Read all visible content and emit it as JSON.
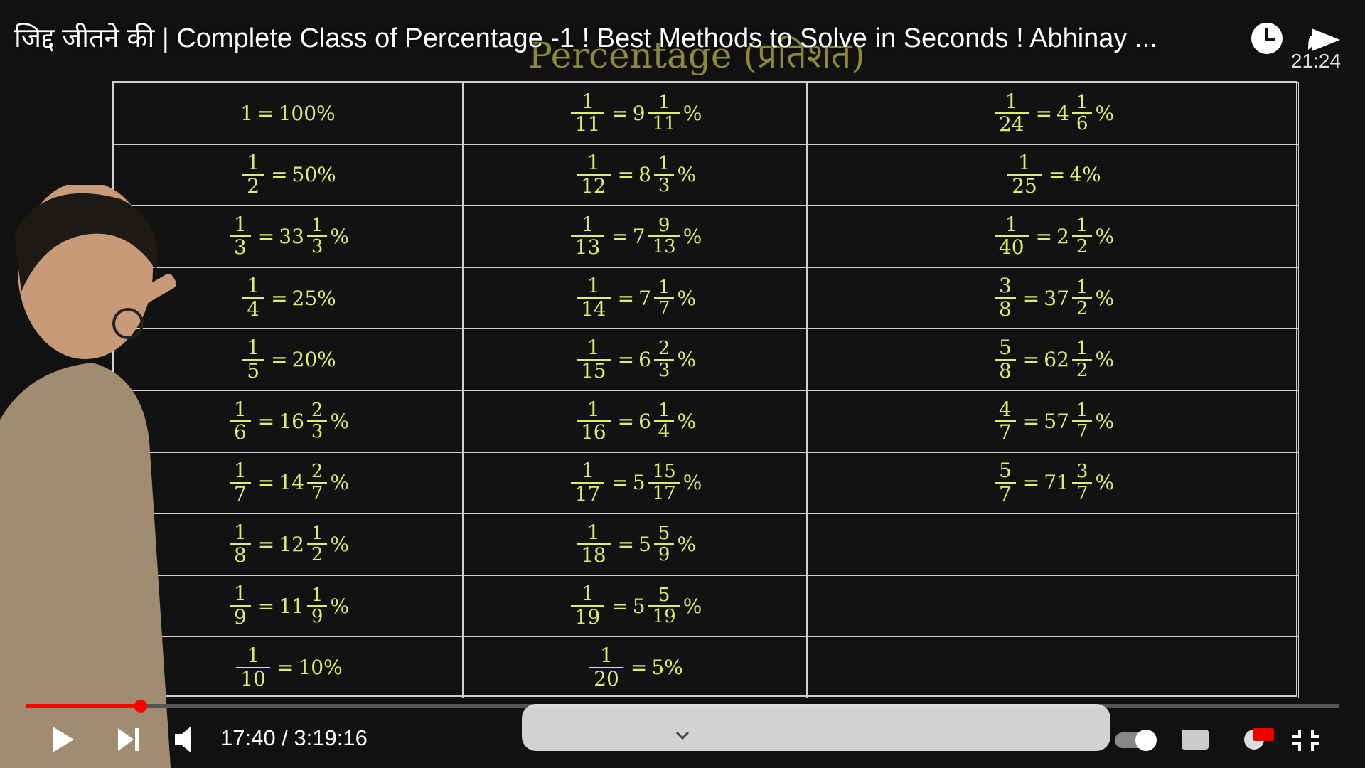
{
  "video": {
    "title": "जिद्द जीतने की | Complete Class of Percentage -1 ! Best Methods to Solve in Seconds ! Abhinay ...",
    "duration_badge": "21:24",
    "time": "17:40 / 3:19:16"
  },
  "board": {
    "heading": "Percentage (प्रतिशत)"
  },
  "symbols": {
    "equals": "=",
    "percent": "%"
  },
  "table": {
    "rows": [
      [
        {
          "lhs": "1",
          "rhs": "100%"
        },
        {
          "num": "1",
          "den": "11",
          "whole": "9",
          "fnum": "1",
          "fden": "11"
        },
        {
          "num": "1",
          "den": "24",
          "whole": "4",
          "fnum": "1",
          "fden": "6"
        }
      ],
      [
        {
          "num": "1",
          "den": "2",
          "rhs": "50%"
        },
        {
          "num": "1",
          "den": "12",
          "whole": "8",
          "fnum": "1",
          "fden": "3"
        },
        {
          "num": "1",
          "den": "25",
          "rhs": "4%"
        }
      ],
      [
        {
          "num": "1",
          "den": "3",
          "whole": "33",
          "fnum": "1",
          "fden": "3"
        },
        {
          "num": "1",
          "den": "13",
          "whole": "7",
          "fnum": "9",
          "fden": "13"
        },
        {
          "num": "1",
          "den": "40",
          "whole": "2",
          "fnum": "1",
          "fden": "2"
        }
      ],
      [
        {
          "num": "1",
          "den": "4",
          "rhs": "25%"
        },
        {
          "num": "1",
          "den": "14",
          "whole": "7",
          "fnum": "1",
          "fden": "7"
        },
        {
          "num": "3",
          "den": "8",
          "whole": "37",
          "fnum": "1",
          "fden": "2"
        }
      ],
      [
        {
          "num": "1",
          "den": "5",
          "rhs": "20%"
        },
        {
          "num": "1",
          "den": "15",
          "whole": "6",
          "fnum": "2",
          "fden": "3"
        },
        {
          "num": "5",
          "den": "8",
          "whole": "62",
          "fnum": "1",
          "fden": "2"
        }
      ],
      [
        {
          "num": "1",
          "den": "6",
          "whole": "16",
          "fnum": "2",
          "fden": "3"
        },
        {
          "num": "1",
          "den": "16",
          "whole": "6",
          "fnum": "1",
          "fden": "4"
        },
        {
          "num": "4",
          "den": "7",
          "whole": "57",
          "fnum": "1",
          "fden": "7"
        }
      ],
      [
        {
          "num": "1",
          "den": "7",
          "whole": "14",
          "fnum": "2",
          "fden": "7"
        },
        {
          "num": "1",
          "den": "17",
          "whole": "5",
          "fnum": "15",
          "fden": "17"
        },
        {
          "num": "5",
          "den": "7",
          "whole": "71",
          "fnum": "3",
          "fden": "7"
        }
      ],
      [
        {
          "num": "1",
          "den": "8",
          "whole": "12",
          "fnum": "1",
          "fden": "2"
        },
        {
          "num": "1",
          "den": "18",
          "whole": "5",
          "fnum": "5",
          "fden": "9"
        },
        null
      ],
      [
        {
          "num": "1",
          "den": "9",
          "whole": "11",
          "fnum": "1",
          "fden": "9"
        },
        {
          "num": "1",
          "den": "19",
          "whole": "5",
          "fnum": "5",
          "fden": "19"
        },
        null
      ],
      [
        {
          "num": "1",
          "den": "10",
          "rhs": "10%"
        },
        {
          "num": "1",
          "den": "20",
          "rhs": "5%"
        },
        null
      ]
    ]
  }
}
